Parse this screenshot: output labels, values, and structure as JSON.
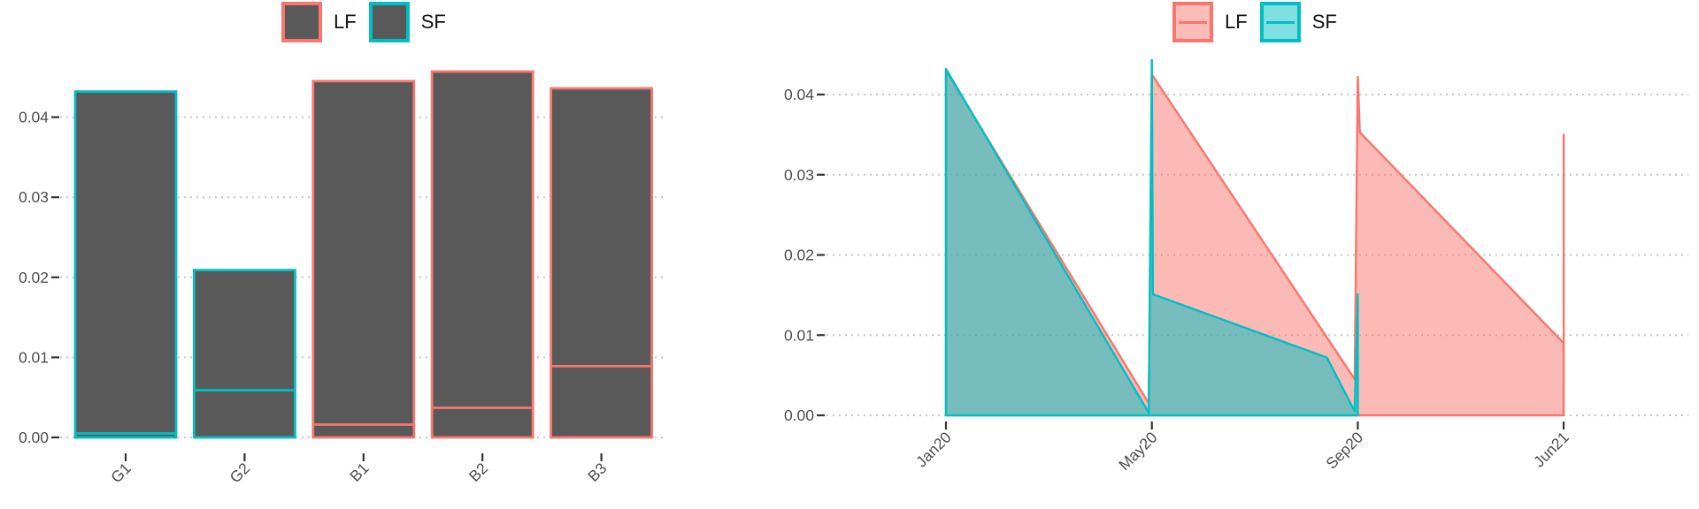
{
  "chart_data": [
    {
      "type": "bar",
      "title": "",
      "xlabel": "",
      "ylabel": "",
      "y_ticks": [
        "0.00",
        "0.01",
        "0.02",
        "0.03",
        "0.04"
      ],
      "ylim": [
        0,
        0.0465
      ],
      "grid": "dotted horizontal",
      "legend_position": "top",
      "legend": [
        {
          "label": "LF",
          "stroke": "#F8766D",
          "fill": "#595959"
        },
        {
          "label": "SF",
          "stroke": "#00BFC4",
          "fill": "#595959"
        }
      ],
      "bar_fill": "#595959",
      "categories": [
        "G1",
        "G2",
        "B1",
        "B2",
        "B3"
      ],
      "bars": [
        {
          "label": "G1",
          "group": "SF",
          "color": "#00BFC4",
          "outer": 0.0432,
          "inner": 0.0005
        },
        {
          "label": "G2",
          "group": "SF",
          "color": "#00BFC4",
          "outer": 0.0209,
          "inner": 0.0059
        },
        {
          "label": "B1",
          "group": "LF",
          "color": "#F8766D",
          "outer": 0.0445,
          "inner": 0.0016
        },
        {
          "label": "B2",
          "group": "LF",
          "color": "#F8766D",
          "outer": 0.0457,
          "inner": 0.0037
        },
        {
          "label": "B3",
          "group": "LF",
          "color": "#F8766D",
          "outer": 0.0436,
          "inner": 0.0089
        }
      ]
    },
    {
      "type": "area",
      "title": "",
      "xlabel": "",
      "ylabel": "",
      "y_ticks": [
        "0.00",
        "0.01",
        "0.02",
        "0.03",
        "0.04"
      ],
      "ylim": [
        0,
        0.0465
      ],
      "x_ticks": [
        "Jan20",
        "May20",
        "Sep20",
        "Jun21"
      ],
      "grid": "dotted horizontal",
      "legend_position": "top",
      "legend": [
        {
          "label": "LF",
          "stroke": "#F8766D",
          "fill": "#FBBCB6"
        },
        {
          "label": "SF",
          "stroke": "#00BFC4",
          "fill": "#7FDFE1"
        }
      ],
      "series": [
        {
          "name": "LF",
          "color": "#F8766D",
          "fill_alpha": 0.5,
          "points": [
            [
              0,
              0.043
            ],
            [
              0.985,
              0.0015
            ],
            [
              1,
              0.0425
            ],
            [
              1.985,
              0.0045
            ],
            [
              2,
              0.0422
            ],
            [
              2.01,
              0.0353
            ],
            [
              3,
              0.009
            ],
            [
              3,
              0.035
            ]
          ]
        },
        {
          "name": "SF",
          "color": "#00BFC4",
          "fill_alpha": 0.52,
          "points": [
            [
              0,
              0.0432
            ],
            [
              0.985,
              0.0003
            ],
            [
              1,
              0.0443
            ],
            [
              1.005,
              0.0151
            ],
            [
              1.85,
              0.0072
            ],
            [
              1.985,
              0.0005
            ],
            [
              2,
              0.0151
            ]
          ]
        }
      ]
    }
  ],
  "colors": {
    "bar_fill": "#595959",
    "salmon": "#F8766D",
    "teal": "#00BFC4",
    "tick_text": "#4D4D4D",
    "tick_mark": "#333333",
    "grid_dot": "#C6C6C6"
  }
}
